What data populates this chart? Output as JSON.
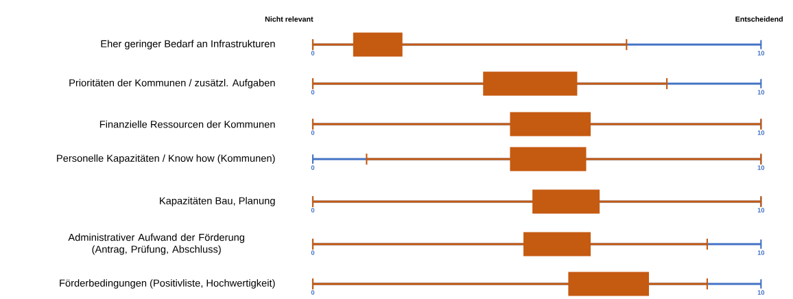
{
  "chart_data": [
    {
      "type": "box",
      "orientation": "horizontal",
      "categories": [
        "Eher geringer Bedarf an Infrastrukturen"
      ],
      "xlim": [
        0,
        10
      ],
      "xticks": [
        0,
        10
      ],
      "color": "#c55a11",
      "annotations": [
        "Nicht relevant",
        "Entscheidend"
      ],
      "boxes": [
        {
          "low": 0,
          "q1": 0.9,
          "q3": 2.0,
          "high": 7.0
        }
      ]
    },
    {
      "type": "box",
      "orientation": "horizontal",
      "categories": [
        "Prioritäten der Kommunen / zusätzl. Aufgaben"
      ],
      "xlim": [
        0,
        10
      ],
      "xticks": [
        0,
        10
      ],
      "color": "#c55a11",
      "boxes": [
        {
          "low": 0,
          "q1": 3.8,
          "q3": 5.9,
          "high": 7.9
        }
      ]
    },
    {
      "type": "box",
      "orientation": "horizontal",
      "categories": [
        "Finanzielle Ressourcen der Kommunen"
      ],
      "xlim": [
        0,
        10
      ],
      "xticks": [
        0,
        10
      ],
      "color": "#c55a11",
      "boxes": [
        {
          "low": 0,
          "q1": 4.4,
          "q3": 6.2,
          "high": 10
        }
      ]
    },
    {
      "type": "box",
      "orientation": "horizontal",
      "categories": [
        "Personelle Kapazitäten / Know how (Kommunen)"
      ],
      "xlim": [
        0,
        10
      ],
      "xticks": [
        0,
        10
      ],
      "color": "#c55a11",
      "boxes": [
        {
          "low": 1.2,
          "q1": 4.4,
          "q3": 6.1,
          "high": 10
        }
      ]
    },
    {
      "type": "box",
      "orientation": "horizontal",
      "categories": [
        "Kapazitäten Bau, Planung"
      ],
      "xlim": [
        0,
        10
      ],
      "xticks": [
        0,
        10
      ],
      "color": "#c55a11",
      "boxes": [
        {
          "low": 0,
          "q1": 4.9,
          "q3": 6.4,
          "high": 10
        }
      ]
    },
    {
      "type": "box",
      "orientation": "horizontal",
      "categories": [
        "Administrativer Aufwand der Förderung (Antrag, Prüfung, Abschluss)"
      ],
      "xlim": [
        0,
        10
      ],
      "xticks": [
        0,
        10
      ],
      "color": "#c55a11",
      "boxes": [
        {
          "low": 0,
          "q1": 4.7,
          "q3": 6.2,
          "high": 8.8
        }
      ]
    },
    {
      "type": "box",
      "orientation": "horizontal",
      "categories": [
        "Förderbedingungen (Positivliste, Hochwertigkeit)"
      ],
      "xlim": [
        0,
        10
      ],
      "xticks": [
        0,
        10
      ],
      "color": "#c55a11",
      "boxes": [
        {
          "low": 0,
          "q1": 5.7,
          "q3": 7.5,
          "high": 8.8
        }
      ]
    }
  ]
}
